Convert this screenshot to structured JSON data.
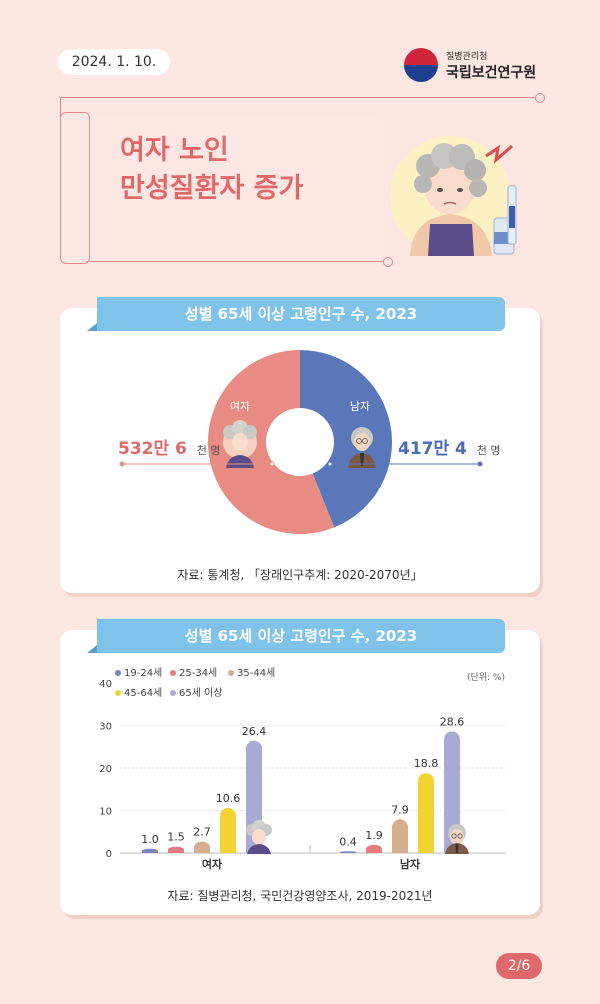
{
  "header": {
    "date": "2024. 1. 10.",
    "org_sub": "질병관리청",
    "org_main": "국립보건연구원"
  },
  "title": {
    "line1": "여자 노인",
    "line2": "만성질환자 증가"
  },
  "donut": {
    "banner": "성별 65세 이상 고령인구 수, 2023",
    "female_label": "여자",
    "male_label": "남자",
    "female_value": "532만 6",
    "female_unit": "천 명",
    "male_value": "417만 4",
    "male_unit": "천 명",
    "source": "자료: 통계청, 「장래인구추계: 2020-2070년」"
  },
  "bars": {
    "banner": "성별 65세 이상 고령인구 수, 2023",
    "unit": "(단위: %)",
    "source": "자료: 질병관리청, 국민건강영양조사, 2019-2021년"
  },
  "chart_data": [
    {
      "type": "pie",
      "title": "성별 65세 이상 고령인구 수, 2023",
      "categories": [
        "여자",
        "남자"
      ],
      "values": [
        5326,
        4174
      ],
      "labels": [
        "532만 6 천 명",
        "417만 4 천 명"
      ],
      "colors": [
        "#e88b82",
        "#5a77b9"
      ]
    },
    {
      "type": "bar",
      "title": "성별 65세 이상 고령인구 수, 2023",
      "categories": [
        "여자",
        "남자"
      ],
      "series": [
        {
          "name": "19-24세",
          "values": [
            1.0,
            0.4
          ],
          "color": "#7b83c0"
        },
        {
          "name": "25-34세",
          "values": [
            1.5,
            1.9
          ],
          "color": "#e87e7b"
        },
        {
          "name": "35-44세",
          "values": [
            2.7,
            7.9
          ],
          "color": "#d6ae8e"
        },
        {
          "name": "45-64세",
          "values": [
            10.6,
            18.8
          ],
          "color": "#f2d332"
        },
        {
          "name": "65세 이상",
          "values": [
            26.4,
            28.6
          ],
          "color": "#a6aad4"
        }
      ],
      "yticks": [
        0,
        10,
        20,
        30,
        40
      ],
      "ylim": [
        0,
        40
      ],
      "unit": "(단위: %)"
    }
  ],
  "page": {
    "indicator": "2/6"
  }
}
